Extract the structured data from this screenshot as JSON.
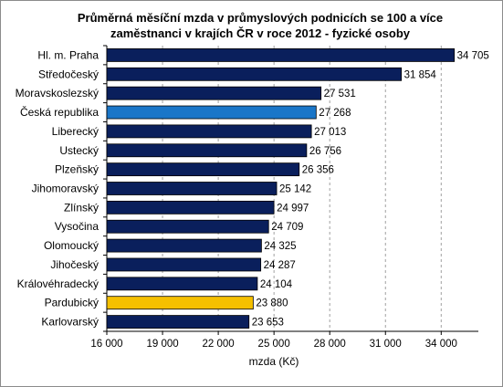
{
  "chart_data": {
    "type": "bar",
    "orientation": "horizontal",
    "title_line1": "Průměrná měsíční mzda v průmyslových podnicích se 100 a více",
    "title_line2": "zaměstnanci v krajích ČR v roce 2012 - fyzické osoby",
    "xlabel": "mzda (Kč)",
    "ylabel": "",
    "xlim": [
      16000,
      36000
    ],
    "xticks": [
      16000,
      19000,
      22000,
      25000,
      28000,
      31000,
      34000
    ],
    "xtick_labels": [
      "16 000",
      "19 000",
      "22 000",
      "25 000",
      "28 000",
      "31 000",
      "34 000"
    ],
    "grid": "vertical dashed",
    "legend": "none",
    "categories": [
      "Hl. m. Praha",
      "Středočeský",
      "Moravskoslezský",
      "Česká republika",
      "Liberecký",
      "Ustecký",
      "Plzeňský",
      "Jihomoravský",
      "Zlínský",
      "Vysočina",
      "Olomoucký",
      "Jihočeský",
      "Královéhradecký",
      "Pardubický",
      "Karlovarský"
    ],
    "values": [
      34705,
      31854,
      27531,
      27268,
      27013,
      26756,
      26356,
      25142,
      24997,
      24709,
      24325,
      24287,
      24104,
      23880,
      23653
    ],
    "value_labels": [
      "34 705",
      "31 854",
      "27 531",
      "27 268",
      "27 013",
      "26 756",
      "26 356",
      "25 142",
      "24 997",
      "24 709",
      "24 325",
      "24 287",
      "24 104",
      "23 880",
      "23 653"
    ],
    "colors": {
      "default": "#0a1f5c",
      "highlight_cr": "#1a76c8",
      "highlight_pardubicky": "#f5c000"
    },
    "bar_colors": [
      "#0a1f5c",
      "#0a1f5c",
      "#0a1f5c",
      "#1a76c8",
      "#0a1f5c",
      "#0a1f5c",
      "#0a1f5c",
      "#0a1f5c",
      "#0a1f5c",
      "#0a1f5c",
      "#0a1f5c",
      "#0a1f5c",
      "#0a1f5c",
      "#f5c000",
      "#0a1f5c"
    ]
  }
}
